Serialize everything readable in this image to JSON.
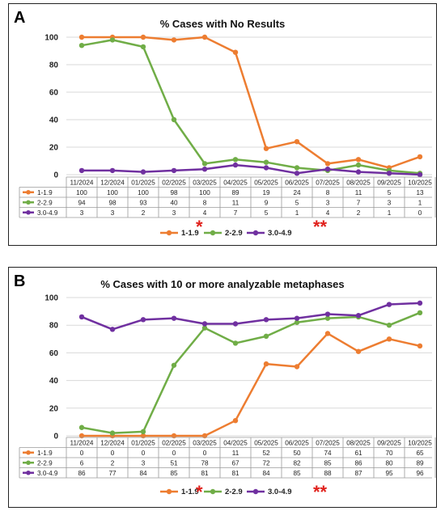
{
  "panels": [
    {
      "letter": "A",
      "star_single": "*",
      "star_double": "**",
      "chart_data": {
        "type": "line",
        "title": "% Cases with No Results",
        "categories": [
          "11/2024",
          "12/2024",
          "01/2025",
          "02/2025",
          "03/2025",
          "04/2025",
          "05/2025",
          "06/2025",
          "07/2025",
          "08/2025",
          "09/2025",
          "10/2025"
        ],
        "ylim": [
          0,
          100
        ],
        "yticks": [
          0,
          20,
          40,
          60,
          80,
          100
        ],
        "grid": true,
        "legend_placement": "bottom",
        "series": [
          {
            "name": "1-1.9",
            "color": "#ED7D31",
            "values": [
              100,
              100,
              100,
              98,
              100,
              89,
              19,
              24,
              8,
              11,
              5,
              13
            ]
          },
          {
            "name": "2-2.9",
            "color": "#70AD47",
            "values": [
              94,
              98,
              93,
              40,
              8,
              11,
              9,
              5,
              3,
              7,
              3,
              1
            ]
          },
          {
            "name": "3.0-4.9",
            "color": "#7030A0",
            "values": [
              3,
              3,
              2,
              3,
              4,
              7,
              5,
              1,
              4,
              2,
              1,
              0
            ]
          }
        ]
      }
    },
    {
      "letter": "B",
      "star_single": "*",
      "star_double": "**",
      "chart_data": {
        "type": "line",
        "title": "% Cases with 10 or more analyzable metaphases",
        "categories": [
          "11/2024",
          "12/2024",
          "01/2025",
          "02/2025",
          "03/2025",
          "04/2025",
          "05/2025",
          "06/2025",
          "07/2025",
          "08/2025",
          "09/2025",
          "10/2025"
        ],
        "ylim": [
          0,
          100
        ],
        "yticks": [
          0,
          20,
          40,
          60,
          80,
          100
        ],
        "grid": true,
        "legend_placement": "bottom",
        "series": [
          {
            "name": "1-1.9",
            "color": "#ED7D31",
            "values": [
              0,
              0,
              0,
              0,
              0,
              11,
              52,
              50,
              74,
              61,
              70,
              65
            ]
          },
          {
            "name": "2-2.9",
            "color": "#70AD47",
            "values": [
              6,
              2,
              3,
              51,
              78,
              67,
              72,
              82,
              85,
              86,
              80,
              89
            ]
          },
          {
            "name": "3.0-4.9",
            "color": "#7030A0",
            "values": [
              86,
              77,
              84,
              85,
              81,
              81,
              84,
              85,
              88,
              87,
              95,
              96
            ]
          }
        ]
      }
    }
  ]
}
